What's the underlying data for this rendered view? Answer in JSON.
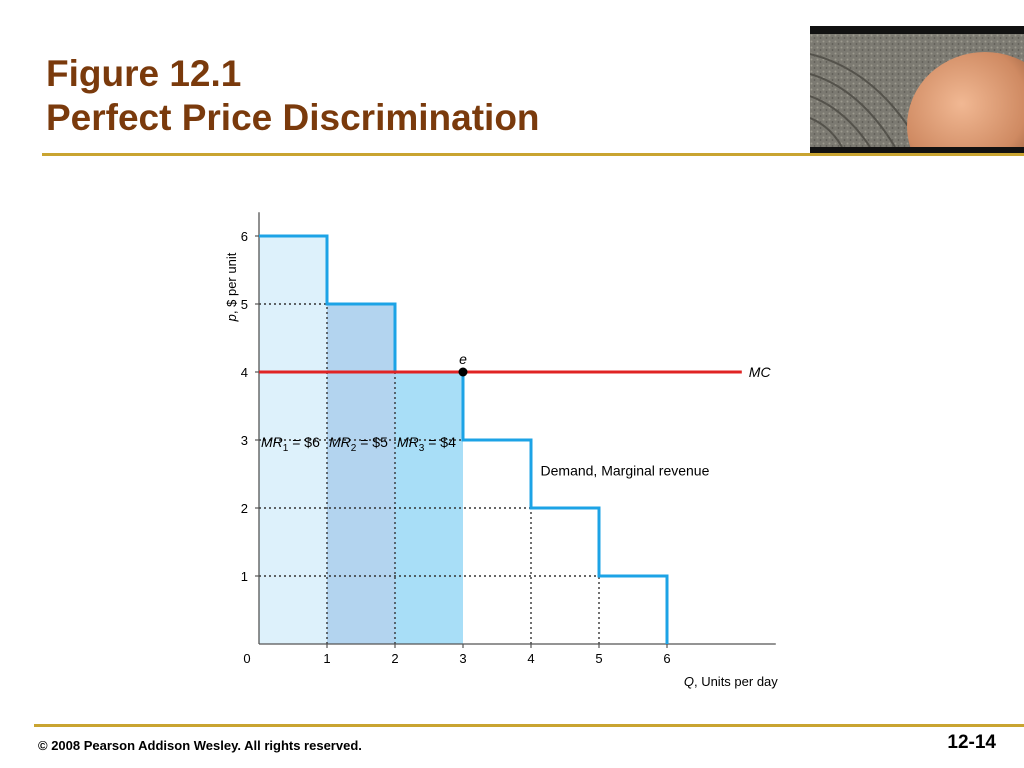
{
  "header": {
    "title_line1": "Figure 12.1",
    "title_line2": "Perfect Price Discrimination"
  },
  "footer": {
    "copyright": "© 2008 Pearson Addison Wesley. All rights reserved.",
    "slide_number": "12-14"
  },
  "colors": {
    "title": "#7a3a0c",
    "rule": "#c9a431",
    "demand_line": "#1ca3e6",
    "mc_line": "#e02424",
    "mr1_fill": "#ddf1fb",
    "mr2_fill": "#b3d4ef",
    "mr3_fill": "#a8def7"
  },
  "chart_data": {
    "type": "line",
    "ylabel": "p, $ per unit",
    "xlabel": "Q, Units per day",
    "xlim": [
      0,
      7.6
    ],
    "ylim": [
      0,
      6.35
    ],
    "x_ticks": [
      0,
      1,
      2,
      3,
      4,
      5,
      6
    ],
    "y_ticks": [
      1,
      2,
      3,
      4,
      5,
      6
    ],
    "series": [
      {
        "name": "Demand, Marginal revenue",
        "shape": "step",
        "points": [
          [
            0,
            6
          ],
          [
            1,
            6
          ],
          [
            1,
            5
          ],
          [
            2,
            5
          ],
          [
            2,
            4
          ],
          [
            3,
            4
          ],
          [
            3,
            3
          ],
          [
            4,
            3
          ],
          [
            4,
            2
          ],
          [
            5,
            2
          ],
          [
            5,
            1
          ],
          [
            6,
            1
          ],
          [
            6,
            0
          ]
        ]
      },
      {
        "name": "MC",
        "shape": "horizontal",
        "y": 4,
        "x_range": [
          0,
          7.1
        ]
      }
    ],
    "shaded_areas": [
      {
        "label_prefix": "MR",
        "subscript": "1",
        "label_suffix": " = $6",
        "x_range": [
          0,
          1
        ],
        "height": 6
      },
      {
        "label_prefix": "MR",
        "subscript": "2",
        "label_suffix": " = $5",
        "x_range": [
          1,
          2
        ],
        "height": 5
      },
      {
        "label_prefix": "MR",
        "subscript": "3",
        "label_suffix": " = $4",
        "x_range": [
          2,
          3
        ],
        "height": 4
      }
    ],
    "guide_lines": [
      {
        "y": 5,
        "x_to": 1
      },
      {
        "y": 3,
        "x_to": 4
      },
      {
        "y": 2,
        "x_to": 5
      },
      {
        "y": 1,
        "x_to": 6
      },
      {
        "x": 1,
        "y_to": 5
      },
      {
        "x": 2,
        "y_to": 4
      },
      {
        "x": 4,
        "y_to": 2
      },
      {
        "x": 5,
        "y_to": 1
      }
    ],
    "equilibrium_point": {
      "label": "e",
      "x": 3,
      "y": 4
    },
    "annotations": {
      "demand_label": "Demand, Marginal revenue",
      "mc_label": "MC"
    }
  }
}
